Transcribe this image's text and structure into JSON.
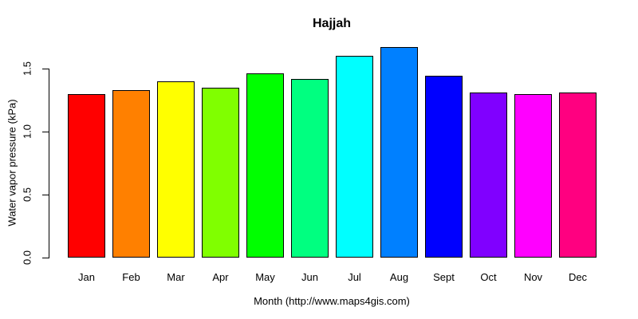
{
  "chart_data": {
    "type": "bar",
    "title": "Hajjah",
    "xlabel": "Month (http://www.maps4gis.com)",
    "ylabel": "Water vapor pressure (kPa)",
    "categories": [
      "Jan",
      "Feb",
      "Mar",
      "Apr",
      "May",
      "Jun",
      "Jul",
      "Aug",
      "Sept",
      "Oct",
      "Nov",
      "Dec"
    ],
    "values": [
      1.3,
      1.33,
      1.4,
      1.35,
      1.46,
      1.42,
      1.6,
      1.67,
      1.44,
      1.31,
      1.3,
      1.31
    ],
    "bar_colors": [
      "#FF0000",
      "#FF8000",
      "#FFFF00",
      "#80FF00",
      "#00FF00",
      "#00FF80",
      "#00FFFF",
      "#0080FF",
      "#0000FF",
      "#8000FF",
      "#FF00FF",
      "#FF0080"
    ],
    "bar_border_color": "#000000",
    "yticks": [
      {
        "value": 0.0,
        "label": "0.0"
      },
      {
        "value": 0.5,
        "label": "0.5"
      },
      {
        "value": 1.0,
        "label": "1.0"
      },
      {
        "value": 1.5,
        "label": "1.5"
      }
    ],
    "ylim": [
      0,
      1.76
    ],
    "grid": false,
    "legend": null,
    "background": "#FFFFFF",
    "text_color": "#000000"
  }
}
